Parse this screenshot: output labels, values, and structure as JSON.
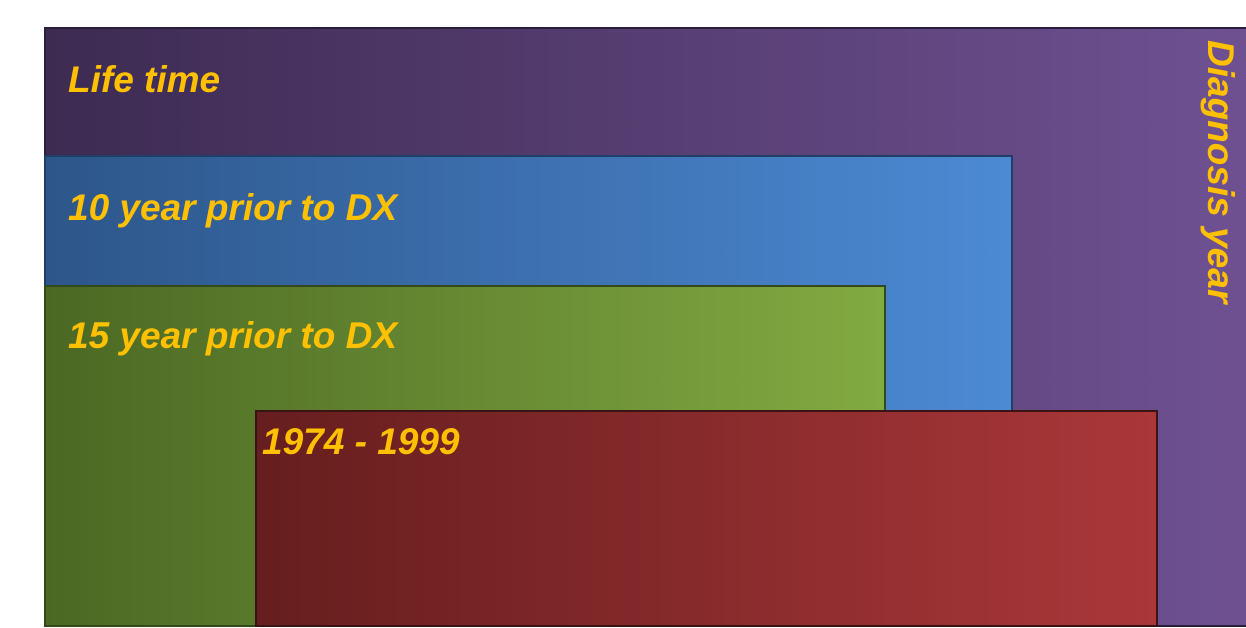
{
  "regions": [
    {
      "label": "Life time"
    },
    {
      "label": "10 year prior to DX"
    },
    {
      "label": "15 year prior to DX"
    },
    {
      "label": "1974 - 1999"
    }
  ],
  "side_label": "Diagnosis year"
}
